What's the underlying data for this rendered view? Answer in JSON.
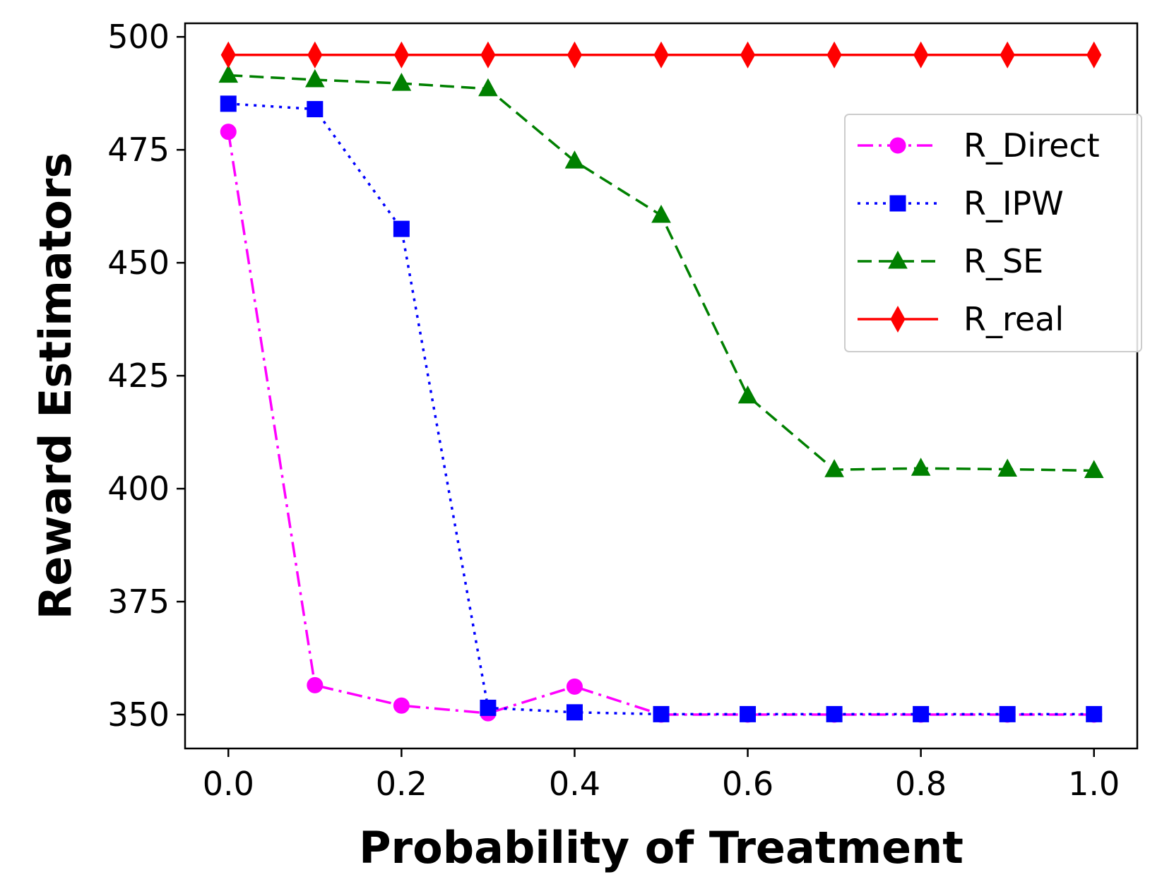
{
  "chart_data": {
    "type": "line",
    "title": "",
    "xlabel": "Probability of Treatment",
    "ylabel": "Reward Estimators",
    "xlim": [
      -0.05,
      1.05
    ],
    "ylim": [
      342.5,
      503
    ],
    "xticks": [
      0.0,
      0.2,
      0.4,
      0.6,
      0.8,
      1.0
    ],
    "xtick_labels": [
      "0.0",
      "0.2",
      "0.4",
      "0.6",
      "0.8",
      "1.0"
    ],
    "yticks": [
      350,
      375,
      400,
      425,
      450,
      475,
      500
    ],
    "ytick_labels": [
      "350",
      "375",
      "400",
      "425",
      "450",
      "475",
      "500"
    ],
    "grid": false,
    "legend_position": "upper-right",
    "x": [
      0.0,
      0.1,
      0.2,
      0.3,
      0.4,
      0.5,
      0.6,
      0.7,
      0.8,
      0.9,
      1.0
    ],
    "series": [
      {
        "name": "R_Direct",
        "color": "#ff00ff",
        "marker": "circle",
        "linestyle": "dashdot",
        "values": [
          479,
          356.5,
          352,
          350.3,
          356.2,
          350,
          350,
          350,
          350,
          350,
          350
        ]
      },
      {
        "name": "R_IPW",
        "color": "#0000ff",
        "marker": "square",
        "linestyle": "dotted",
        "values": [
          485.2,
          484,
          457.5,
          351.5,
          350.5,
          350.1,
          350.1,
          350.1,
          350.1,
          350.1,
          350.1
        ]
      },
      {
        "name": "R_SE",
        "color": "#008000",
        "marker": "triangle",
        "linestyle": "dashed",
        "values": [
          491.5,
          490.5,
          489.7,
          488.5,
          472.5,
          460.5,
          420.5,
          404.2,
          404.5,
          404.3,
          404
        ]
      },
      {
        "name": "R_real",
        "color": "#ff0000",
        "marker": "diamond",
        "linestyle": "solid",
        "values": [
          496,
          496,
          496,
          496,
          496,
          496,
          496,
          496,
          496,
          496,
          496
        ]
      }
    ]
  }
}
